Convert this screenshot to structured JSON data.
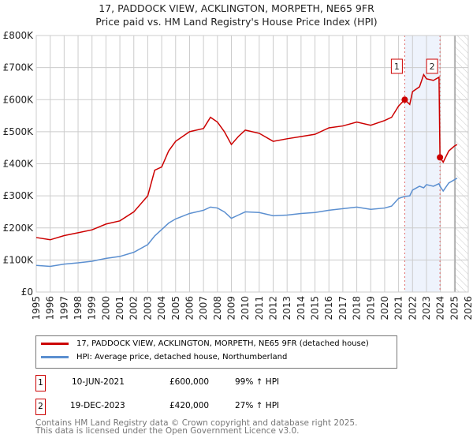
{
  "title": "17, PADDOCK VIEW, ACKLINGTON, MORPETH, NE65 9FR",
  "subtitle": "Price paid vs. HM Land Registry's House Price Index (HPI)",
  "chart_data": {
    "type": "line",
    "ylim": [
      0,
      800000
    ],
    "xlim": [
      1995,
      2026
    ],
    "y_ticks": [
      {
        "v": 0,
        "l": "£0"
      },
      {
        "v": 100000,
        "l": "£100K"
      },
      {
        "v": 200000,
        "l": "£200K"
      },
      {
        "v": 300000,
        "l": "£300K"
      },
      {
        "v": 400000,
        "l": "£400K"
      },
      {
        "v": 500000,
        "l": "£500K"
      },
      {
        "v": 600000,
        "l": "£600K"
      },
      {
        "v": 700000,
        "l": "£700K"
      },
      {
        "v": 800000,
        "l": "£800K"
      }
    ],
    "x_ticks": [
      "1995",
      "1996",
      "1997",
      "1998",
      "1999",
      "2000",
      "2001",
      "2002",
      "2003",
      "2004",
      "2005",
      "2006",
      "2007",
      "2008",
      "2009",
      "2010",
      "2011",
      "2012",
      "2013",
      "2014",
      "2015",
      "2016",
      "2017",
      "2018",
      "2019",
      "2020",
      "2021",
      "2022",
      "2023",
      "2024",
      "2025",
      "2026"
    ],
    "grid": true,
    "series": [
      {
        "name": "17, PADDOCK VIEW, ACKLINGTON, MORPETH, NE65 9FR (detached house)",
        "color": "#cc0000",
        "x": [
          1995,
          1996,
          1997,
          1998,
          1999,
          2000,
          2001,
          2002,
          2003,
          2003.5,
          2004,
          2004.5,
          2005,
          2006,
          2007,
          2007.5,
          2008,
          2008.5,
          2009,
          2009.5,
          2010,
          2011,
          2012,
          2013,
          2014,
          2015,
          2016,
          2017,
          2018,
          2019,
          2020,
          2020.5,
          2021,
          2021.44,
          2021.8,
          2022,
          2022.5,
          2022.8,
          2023,
          2023.5,
          2023.9,
          2023.97,
          2024.2,
          2024.6,
          2025,
          2025.2
        ],
        "y": [
          170000,
          163000,
          176000,
          185000,
          194000,
          212000,
          222000,
          250000,
          300000,
          380000,
          390000,
          440000,
          470000,
          500000,
          510000,
          545000,
          530000,
          500000,
          460000,
          485000,
          505000,
          495000,
          470000,
          478000,
          485000,
          492000,
          512000,
          518000,
          530000,
          520000,
          535000,
          545000,
          580000,
          600000,
          585000,
          625000,
          640000,
          678000,
          665000,
          660000,
          670000,
          420000,
          405000,
          440000,
          455000,
          460000
        ]
      },
      {
        "name": "HPI: Average price, detached house, Northumberland",
        "color": "#5b8fd0",
        "x": [
          1995,
          1996,
          1997,
          1998,
          1999,
          2000,
          2001,
          2002,
          2003,
          2003.5,
          2004,
          2004.5,
          2005,
          2006,
          2007,
          2007.5,
          2008,
          2008.5,
          2009,
          2009.5,
          2010,
          2011,
          2012,
          2013,
          2014,
          2015,
          2016,
          2017,
          2018,
          2019,
          2020,
          2020.5,
          2021,
          2021.44,
          2021.8,
          2022,
          2022.5,
          2022.8,
          2023,
          2023.5,
          2023.9,
          2023.97,
          2024.2,
          2024.6,
          2025,
          2025.2
        ],
        "y": [
          83000,
          80000,
          87000,
          91000,
          96000,
          105000,
          111000,
          124000,
          148000,
          175000,
          195000,
          215000,
          228000,
          245000,
          255000,
          265000,
          262000,
          250000,
          230000,
          240000,
          250000,
          248000,
          238000,
          240000,
          245000,
          248000,
          255000,
          260000,
          265000,
          258000,
          262000,
          268000,
          292000,
          298000,
          300000,
          318000,
          330000,
          325000,
          335000,
          330000,
          338000,
          330000,
          315000,
          340000,
          350000,
          355000
        ]
      }
    ],
    "sales": [
      {
        "label": "1",
        "x": 2021.44,
        "y": 600000
      },
      {
        "label": "2",
        "x": 2023.97,
        "y": 420000
      }
    ],
    "shaded_range": [
      2021.44,
      2023.97
    ],
    "hatched_from": 2025.05
  },
  "legend": {
    "items": [
      {
        "label": "17, PADDOCK VIEW, ACKLINGTON, MORPETH, NE65 9FR (detached house)",
        "color": "#cc0000"
      },
      {
        "label": "HPI: Average price, detached house, Northumberland",
        "color": "#5b8fd0"
      }
    ]
  },
  "transactions": [
    {
      "num": "1",
      "date": "10-JUN-2021",
      "price": "£600,000",
      "hpi": "99% ↑ HPI"
    },
    {
      "num": "2",
      "date": "19-DEC-2023",
      "price": "£420,000",
      "hpi": "27% ↑ HPI"
    }
  ],
  "footer": {
    "line1": "Contains HM Land Registry data © Crown copyright and database right 2025.",
    "line2": "This data is licensed under the Open Government Licence v3.0."
  }
}
